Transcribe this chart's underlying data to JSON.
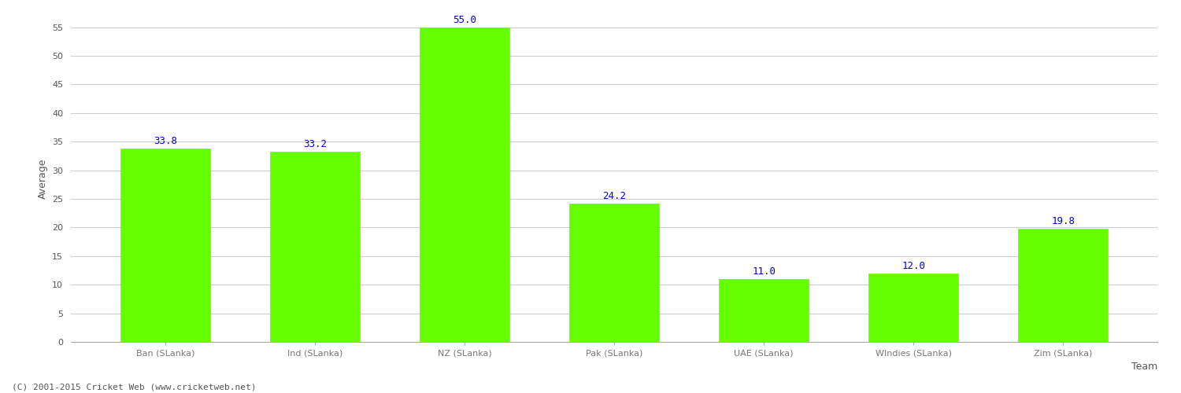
{
  "categories": [
    "Ban (SLanka)",
    "Ind (SLanka)",
    "NZ (SLanka)",
    "Pak (SLanka)",
    "UAE (SLanka)",
    "WIndies (SLanka)",
    "Zim (SLanka)"
  ],
  "values": [
    33.8,
    33.2,
    55.0,
    24.2,
    11.0,
    12.0,
    19.8
  ],
  "bar_color": "#66ff00",
  "bar_edge_color": "#66ff00",
  "value_color": "#0000cc",
  "xlabel": "Team",
  "ylabel": "Average",
  "ylim": [
    0,
    57
  ],
  "yticks": [
    0,
    5,
    10,
    15,
    20,
    25,
    30,
    35,
    40,
    45,
    50,
    55
  ],
  "grid_color": "#cccccc",
  "background_color": "#ffffff",
  "footer": "(C) 2001-2015 Cricket Web (www.cricketweb.net)",
  "value_fontsize": 9,
  "axis_label_fontsize": 9,
  "tick_fontsize": 8,
  "footer_fontsize": 8
}
